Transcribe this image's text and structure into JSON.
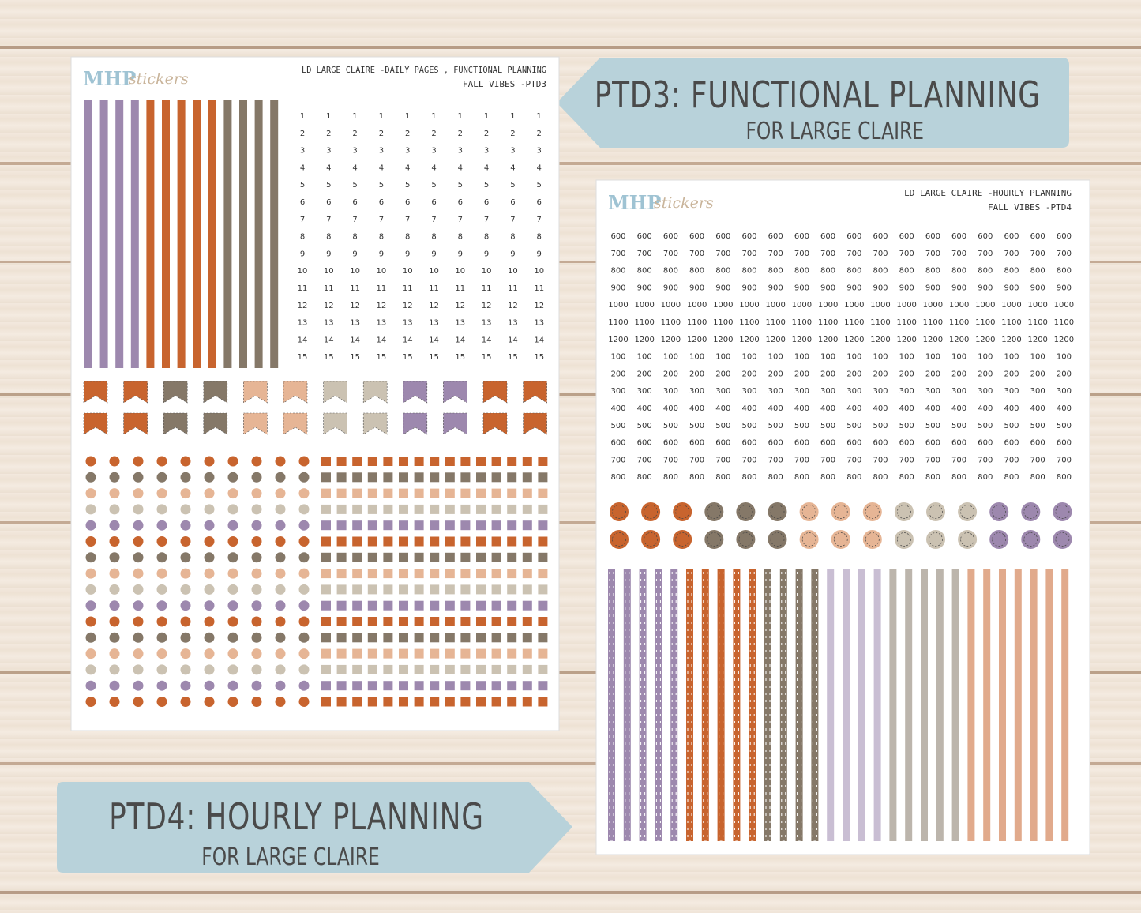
{
  "logo": {
    "mark": "MHP",
    "script": "stickers"
  },
  "sheet_ptd3": {
    "header": "LD LARGE CLAIRE -DAILY PAGES , FUNCTIONAL PLANNING",
    "subheader": "FALL VIBES -PTD3",
    "numbers": [
      "1",
      "2",
      "3",
      "4",
      "5",
      "6",
      "7",
      "8",
      "9",
      "10",
      "11",
      "12",
      "13",
      "14",
      "15"
    ]
  },
  "sheet_ptd4": {
    "header": "LD LARGE CLAIRE -HOURLY PLANNING",
    "subheader": "FALL VIBES -PTD4",
    "hours": [
      "600",
      "700",
      "800",
      "900",
      "1000",
      "1100",
      "1200",
      "100",
      "200",
      "300",
      "400",
      "500",
      "600",
      "700",
      "800"
    ]
  },
  "banner_ptd3": {
    "title": "PTD3: FUNCTIONAL PLANNING",
    "subtitle": "FOR LARGE CLAIRE"
  },
  "banner_ptd4": {
    "title": "PTD4: HOURLY PLANNING",
    "subtitle": "FOR LARGE CLAIRE"
  }
}
